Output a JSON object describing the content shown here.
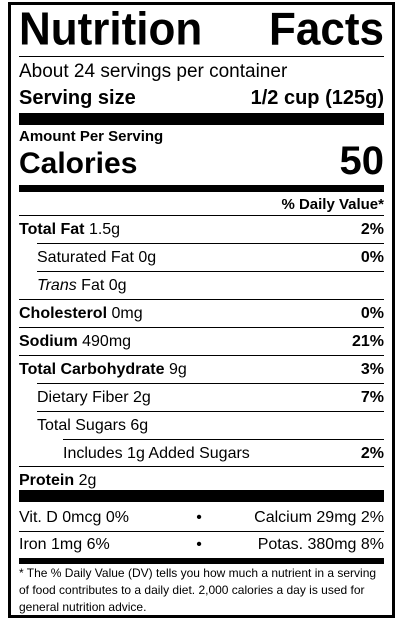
{
  "title": {
    "word1": "Nutrition",
    "word2": "Facts"
  },
  "servings_per_container": "About 24 servings per container",
  "serving_size": {
    "label": "Serving size",
    "value": "1/2 cup (125g)"
  },
  "amount_per_serving": "Amount Per Serving",
  "calories": {
    "label": "Calories",
    "value": "50"
  },
  "daily_value_header": "% Daily Value*",
  "nutrients": [
    {
      "name": "Total Fat",
      "amount": "1.5g",
      "dv": "2%"
    },
    {
      "name": "Saturated Fat",
      "amount": "0g",
      "dv": "0%"
    },
    {
      "name_italic": "Trans",
      "name": "Fat",
      "amount": "0g",
      "dv": ""
    },
    {
      "name": "Cholesterol",
      "amount": "0mg",
      "dv": "0%"
    },
    {
      "name": "Sodium",
      "amount": "490mg",
      "dv": "21%"
    },
    {
      "name": "Total Carbohydrate",
      "amount": "9g",
      "dv": "3%"
    },
    {
      "name": "Dietary Fiber",
      "amount": "2g",
      "dv": "7%"
    },
    {
      "name": "Total Sugars",
      "amount": "6g",
      "dv": ""
    },
    {
      "name": "Includes 1g Added Sugars",
      "amount": "",
      "dv": "2%"
    },
    {
      "name": "Protein",
      "amount": "2g",
      "dv": ""
    }
  ],
  "vitamins": [
    {
      "left": "Vit. D 0mcg 0%",
      "bullet": "•",
      "right": "Calcium 29mg 2%"
    },
    {
      "left": "Iron 1mg 6%",
      "bullet": "•",
      "right": "Potas. 380mg 8%"
    }
  ],
  "footnote": "* The % Daily Value (DV) tells you how much a nutrient in a serving of food contributes to a daily diet. 2,000 calories a day is used for general nutrition advice."
}
